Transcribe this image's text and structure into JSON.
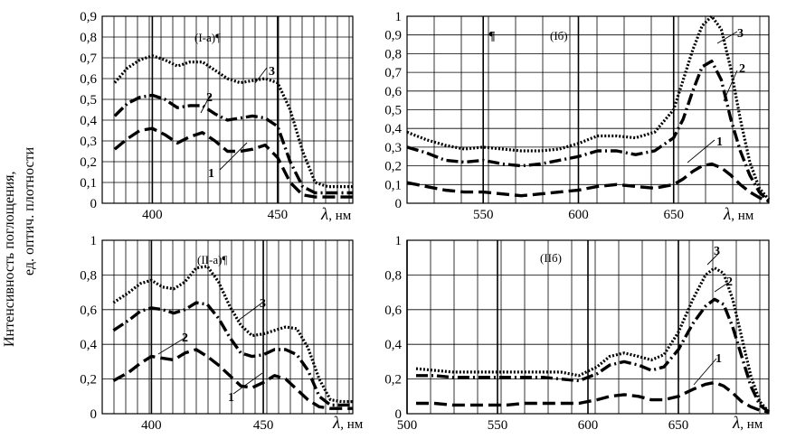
{
  "figure": {
    "ylabel_line1": "Интенсивность поглощения,",
    "ylabel_line2": "ед. оптич. плотности",
    "xlabel_symbol": "λ",
    "xlabel_unit": ", нм"
  },
  "chart_data": [
    {
      "id": "Ia",
      "type": "line",
      "title": "(I-a)¶",
      "xlabel": "λ, нм",
      "ylabel": "Интенсивность поглощения, ед. оптич. плотности",
      "xlim": [
        380,
        480
      ],
      "ylim": [
        0,
        0.9
      ],
      "xticks": [
        400,
        450
      ],
      "yticks": [
        0,
        0.1,
        0.2,
        0.3,
        0.4,
        0.5,
        0.6,
        0.7,
        0.8,
        0.9
      ],
      "ytick_labels": [
        "0",
        "0,1",
        "0,2",
        "0,3",
        "0,4",
        "0,5",
        "0,6",
        "0,7",
        "0,8",
        "0,9"
      ],
      "series": [
        {
          "name": "3",
          "style": "dotted",
          "x": [
            385,
            390,
            395,
            400,
            405,
            410,
            415,
            420,
            425,
            430,
            435,
            440,
            445,
            450,
            455,
            460,
            465,
            470,
            475,
            480
          ],
          "y": [
            0.58,
            0.65,
            0.69,
            0.71,
            0.69,
            0.66,
            0.68,
            0.68,
            0.64,
            0.6,
            0.58,
            0.59,
            0.6,
            0.58,
            0.45,
            0.25,
            0.1,
            0.08,
            0.08,
            0.08
          ]
        },
        {
          "name": "2",
          "style": "dashdot",
          "x": [
            385,
            390,
            395,
            400,
            405,
            410,
            415,
            420,
            425,
            430,
            435,
            440,
            445,
            450,
            455,
            460,
            465,
            470,
            475,
            480
          ],
          "y": [
            0.42,
            0.48,
            0.51,
            0.52,
            0.5,
            0.46,
            0.47,
            0.47,
            0.43,
            0.4,
            0.41,
            0.42,
            0.41,
            0.37,
            0.2,
            0.08,
            0.05,
            0.05,
            0.05,
            0.05
          ]
        },
        {
          "name": "1",
          "style": "dashed",
          "x": [
            385,
            390,
            395,
            400,
            405,
            410,
            415,
            420,
            425,
            430,
            435,
            440,
            445,
            450,
            455,
            460,
            465,
            470,
            475,
            480
          ],
          "y": [
            0.26,
            0.31,
            0.35,
            0.36,
            0.33,
            0.29,
            0.32,
            0.34,
            0.3,
            0.25,
            0.25,
            0.26,
            0.28,
            0.22,
            0.1,
            0.04,
            0.03,
            0.03,
            0.03,
            0.03
          ]
        }
      ],
      "annotations": [
        "3",
        "2",
        "1"
      ]
    },
    {
      "id": "Ib",
      "type": "line",
      "title": "(Iб)",
      "extra_mark": "¶",
      "xlabel": "λ, нм",
      "xlim": [
        510,
        700
      ],
      "ylim": [
        0,
        1
      ],
      "xticks": [
        550,
        600,
        650
      ],
      "yticks": [
        0,
        0.1,
        0.2,
        0.3,
        0.4,
        0.5,
        0.6,
        0.7,
        0.8,
        0.9,
        1
      ],
      "ytick_labels": [
        "0",
        "0,1",
        "0,2",
        "0,3",
        "0,4",
        "0,5",
        "0,6",
        "0,7",
        "0,8",
        "0,9",
        "1"
      ],
      "series": [
        {
          "name": "3",
          "style": "dotted",
          "x": [
            510,
            520,
            530,
            540,
            550,
            560,
            570,
            580,
            590,
            600,
            610,
            620,
            630,
            640,
            650,
            655,
            660,
            665,
            670,
            675,
            680,
            685,
            690,
            695,
            700
          ],
          "y": [
            0.38,
            0.34,
            0.31,
            0.29,
            0.3,
            0.29,
            0.28,
            0.28,
            0.29,
            0.32,
            0.36,
            0.36,
            0.35,
            0.38,
            0.5,
            0.66,
            0.82,
            0.95,
            1.0,
            0.93,
            0.72,
            0.45,
            0.22,
            0.08,
            0.02
          ]
        },
        {
          "name": "2",
          "style": "dashdot",
          "x": [
            510,
            520,
            530,
            540,
            550,
            560,
            570,
            580,
            590,
            600,
            610,
            620,
            630,
            640,
            650,
            655,
            660,
            665,
            670,
            675,
            680,
            685,
            690,
            695,
            700
          ],
          "y": [
            0.3,
            0.27,
            0.23,
            0.22,
            0.23,
            0.21,
            0.2,
            0.21,
            0.23,
            0.25,
            0.28,
            0.28,
            0.26,
            0.28,
            0.35,
            0.45,
            0.6,
            0.73,
            0.76,
            0.66,
            0.45,
            0.28,
            0.15,
            0.06,
            0.01
          ]
        },
        {
          "name": "1",
          "style": "dashed",
          "x": [
            510,
            520,
            530,
            540,
            550,
            560,
            570,
            580,
            590,
            600,
            610,
            620,
            630,
            640,
            650,
            655,
            660,
            665,
            670,
            675,
            680,
            685,
            690,
            695,
            700
          ],
          "y": [
            0.11,
            0.09,
            0.07,
            0.06,
            0.06,
            0.05,
            0.04,
            0.05,
            0.06,
            0.07,
            0.09,
            0.1,
            0.09,
            0.08,
            0.1,
            0.13,
            0.17,
            0.2,
            0.21,
            0.19,
            0.15,
            0.1,
            0.06,
            0.03,
            0.01
          ]
        }
      ],
      "annotations": [
        "3",
        "2",
        "1"
      ]
    },
    {
      "id": "IIa",
      "type": "line",
      "title": "(II-a)¶",
      "xlabel": "λ, нм",
      "ylabel": "Интенсивность поглощения, ед. оптич. плотности",
      "xlim": [
        378,
        490
      ],
      "ylim": [
        0,
        1
      ],
      "xticks": [
        400,
        450
      ],
      "yticks": [
        0,
        0.2,
        0.4,
        0.6,
        0.8,
        1
      ],
      "ytick_labels": [
        "0",
        "0,2",
        "0,4",
        "0,6",
        "0,8",
        "1"
      ],
      "series": [
        {
          "name": "3",
          "style": "dotted",
          "x": [
            383,
            390,
            395,
            400,
            405,
            410,
            415,
            420,
            425,
            430,
            435,
            440,
            445,
            450,
            455,
            460,
            465,
            470,
            475,
            480,
            485,
            490
          ],
          "y": [
            0.64,
            0.7,
            0.75,
            0.77,
            0.73,
            0.72,
            0.76,
            0.84,
            0.85,
            0.76,
            0.62,
            0.51,
            0.45,
            0.46,
            0.48,
            0.5,
            0.49,
            0.38,
            0.2,
            0.08,
            0.07,
            0.07
          ]
        },
        {
          "name": "2",
          "style": "dashdot",
          "x": [
            383,
            390,
            395,
            400,
            405,
            410,
            415,
            420,
            425,
            430,
            435,
            440,
            445,
            450,
            455,
            460,
            465,
            470,
            475,
            480,
            485,
            490
          ],
          "y": [
            0.48,
            0.54,
            0.59,
            0.61,
            0.6,
            0.58,
            0.6,
            0.64,
            0.63,
            0.55,
            0.44,
            0.35,
            0.33,
            0.34,
            0.37,
            0.37,
            0.34,
            0.25,
            0.1,
            0.05,
            0.05,
            0.05
          ]
        },
        {
          "name": "1",
          "style": "dashed",
          "x": [
            383,
            390,
            395,
            400,
            405,
            410,
            415,
            420,
            425,
            430,
            435,
            440,
            445,
            450,
            455,
            460,
            465,
            470,
            475,
            480,
            485,
            490
          ],
          "y": [
            0.19,
            0.24,
            0.29,
            0.33,
            0.32,
            0.31,
            0.35,
            0.37,
            0.33,
            0.28,
            0.22,
            0.16,
            0.15,
            0.18,
            0.22,
            0.2,
            0.14,
            0.08,
            0.04,
            0.03,
            0.03,
            0.03
          ]
        }
      ],
      "annotations": [
        "3",
        "2",
        "1"
      ]
    },
    {
      "id": "IIb",
      "type": "line",
      "title": "(IIб)",
      "xlabel": "λ, нм",
      "xlim": [
        500,
        700
      ],
      "ylim": [
        0,
        1
      ],
      "xticks": [
        500,
        550,
        600,
        650
      ],
      "yticks": [
        0,
        0.2,
        0.4,
        0.6,
        0.8,
        1
      ],
      "ytick_labels": [
        "0",
        "0,2",
        "0,4",
        "0,6",
        "0,8",
        "1"
      ],
      "series": [
        {
          "name": "3",
          "style": "dotted",
          "x": [
            505,
            515,
            525,
            535,
            545,
            555,
            565,
            575,
            585,
            595,
            605,
            612,
            620,
            628,
            635,
            642,
            650,
            658,
            665,
            670,
            675,
            680,
            685,
            690,
            695,
            700
          ],
          "y": [
            0.26,
            0.25,
            0.24,
            0.24,
            0.24,
            0.24,
            0.24,
            0.24,
            0.24,
            0.22,
            0.27,
            0.33,
            0.35,
            0.33,
            0.31,
            0.34,
            0.47,
            0.66,
            0.8,
            0.84,
            0.81,
            0.66,
            0.44,
            0.22,
            0.07,
            0.01
          ]
        },
        {
          "name": "2",
          "style": "dashdot",
          "x": [
            505,
            515,
            525,
            535,
            545,
            555,
            565,
            575,
            585,
            595,
            605,
            612,
            620,
            628,
            635,
            642,
            650,
            658,
            665,
            670,
            675,
            680,
            685,
            690,
            695,
            700
          ],
          "y": [
            0.22,
            0.22,
            0.21,
            0.21,
            0.21,
            0.21,
            0.21,
            0.21,
            0.2,
            0.19,
            0.23,
            0.28,
            0.3,
            0.28,
            0.25,
            0.27,
            0.37,
            0.52,
            0.62,
            0.66,
            0.63,
            0.5,
            0.33,
            0.16,
            0.05,
            0.01
          ]
        },
        {
          "name": "1",
          "style": "dashed",
          "x": [
            505,
            515,
            525,
            535,
            545,
            555,
            565,
            575,
            585,
            595,
            605,
            612,
            620,
            628,
            635,
            642,
            650,
            658,
            665,
            670,
            675,
            680,
            685,
            690,
            695,
            700
          ],
          "y": [
            0.06,
            0.06,
            0.05,
            0.05,
            0.05,
            0.05,
            0.06,
            0.06,
            0.06,
            0.06,
            0.08,
            0.1,
            0.11,
            0.1,
            0.08,
            0.08,
            0.1,
            0.14,
            0.17,
            0.18,
            0.16,
            0.12,
            0.07,
            0.04,
            0.02,
            0.01
          ]
        }
      ],
      "annotations": [
        "3",
        "2",
        "1"
      ]
    }
  ]
}
